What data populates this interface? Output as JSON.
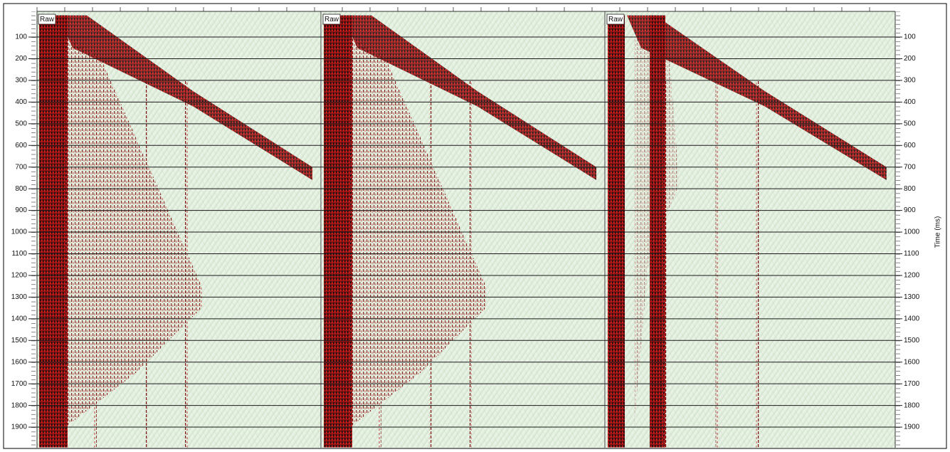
{
  "panels": [
    {
      "label": "Raw"
    },
    {
      "label": "Raw"
    },
    {
      "label": "Raw"
    }
  ],
  "time_axis": {
    "label": "Time (ms)",
    "ylim": [
      0,
      2000
    ],
    "ticks": [
      100,
      200,
      300,
      400,
      500,
      600,
      700,
      800,
      900,
      1000,
      1100,
      1200,
      1300,
      1400,
      1500,
      1600,
      1700,
      1800,
      1900
    ]
  }
}
